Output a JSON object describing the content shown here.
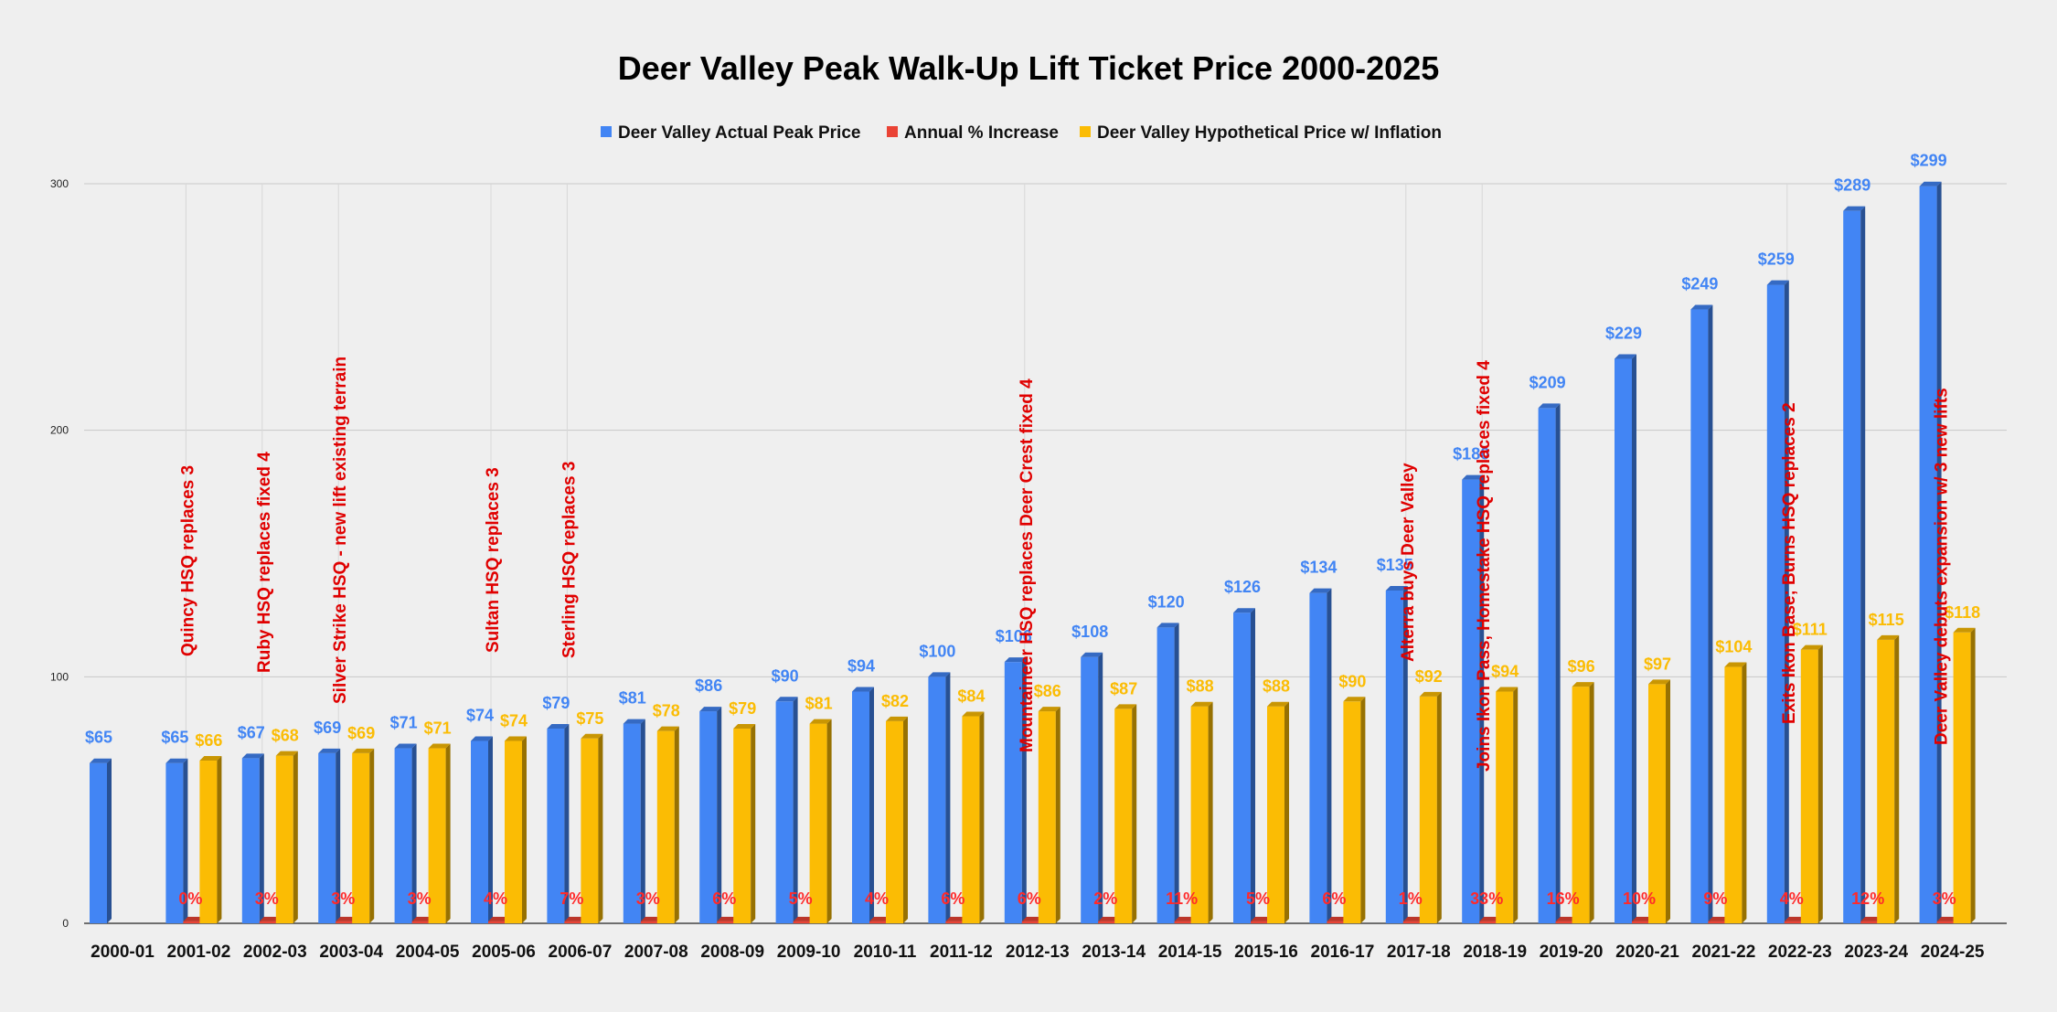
{
  "chart_data": {
    "type": "bar",
    "title": "Deer Valley Peak Walk-Up Lift Ticket Price 2000-2025",
    "legend_position": "top",
    "grid": true,
    "ylim": [
      0,
      300
    ],
    "yticks": [
      "0",
      "100",
      "200",
      "300"
    ],
    "categories": [
      "2000-01",
      "2001-02",
      "2002-03",
      "2003-04",
      "2004-05",
      "2005-06",
      "2006-07",
      "2007-08",
      "2008-09",
      "2009-10",
      "2010-11",
      "2011-12",
      "2012-13",
      "2013-14",
      "2014-15",
      "2015-16",
      "2016-17",
      "2017-18",
      "2018-19",
      "2019-20",
      "2020-21",
      "2021-22",
      "2022-23",
      "2023-24",
      "2024-25"
    ],
    "series": [
      {
        "name": "Deer Valley Actual Peak Price",
        "color": "#4285f4",
        "values": [
          65,
          65,
          67,
          69,
          71,
          74,
          79,
          81,
          86,
          90,
          94,
          100,
          106,
          108,
          120,
          126,
          134,
          135,
          180,
          209,
          229,
          249,
          259,
          289,
          299
        ],
        "labels": [
          "$65",
          "$65",
          "$67",
          "$69",
          "$71",
          "$74",
          "$79",
          "$81",
          "$86",
          "$90",
          "$94",
          "$100",
          "$106",
          "$108",
          "$120",
          "$126",
          "$134",
          "$135",
          "$180",
          "$209",
          "$229",
          "$249",
          "$259",
          "$289",
          "$299"
        ]
      },
      {
        "name": "Annual % Increase",
        "color": "#ea4335",
        "values": [
          null,
          0,
          3,
          3,
          3,
          4,
          7,
          3,
          6,
          5,
          4,
          6,
          6,
          2,
          11,
          5,
          6,
          1,
          33,
          16,
          10,
          9,
          4,
          12,
          3
        ],
        "labels": [
          "",
          "0%",
          "3%",
          "3%",
          "3%",
          "4%",
          "7%",
          "3%",
          "6%",
          "5%",
          "4%",
          "6%",
          "6%",
          "2%",
          "11%",
          "5%",
          "6%",
          "1%",
          "33%",
          "16%",
          "10%",
          "9%",
          "4%",
          "12%",
          "3%"
        ]
      },
      {
        "name": "Deer Valley Hypothetical Price w/ Inflation",
        "color": "#fbbc04",
        "values": [
          null,
          66,
          68,
          69,
          71,
          74,
          75,
          78,
          79,
          81,
          82,
          84,
          86,
          87,
          88,
          88,
          90,
          92,
          94,
          96,
          97,
          104,
          111,
          115,
          118
        ],
        "labels": [
          "",
          "$66",
          "$68",
          "$69",
          "$71",
          "$74",
          "$75",
          "$78",
          "$79",
          "$81",
          "$82",
          "$84",
          "$86",
          "$87",
          "$88",
          "$88",
          "$90",
          "$92",
          "$94",
          "$96",
          "$97",
          "$104",
          "$111",
          "$115",
          "$118"
        ]
      }
    ],
    "annotations": [
      {
        "category": "2001-02",
        "text": "Quincy HSQ replaces 3"
      },
      {
        "category": "2002-03",
        "text": "Ruby HSQ replaces fixed 4"
      },
      {
        "category": "2003-04",
        "text": "Silver Strike HSQ - new lift existing terrain"
      },
      {
        "category": "2005-06",
        "text": "Sultan HSQ replaces 3"
      },
      {
        "category": "2006-07",
        "text": "Sterling HSQ replaces 3"
      },
      {
        "category": "2012-13",
        "text": "Mountaineer HSQ replaces Deer Crest fixed 4"
      },
      {
        "category": "2017-18",
        "text": "Alterra buys Deer Valley"
      },
      {
        "category": "2018-19",
        "text": "Joins Ikon Pass, Homestake HSQ replaces fixed 4"
      },
      {
        "category": "2022-23",
        "text": "Exits Ikon Base; Burns HSQ replaces 2"
      },
      {
        "category": "2024-25",
        "text": "Deer Valley debuts expansion w/ 3 new lifts"
      }
    ]
  }
}
